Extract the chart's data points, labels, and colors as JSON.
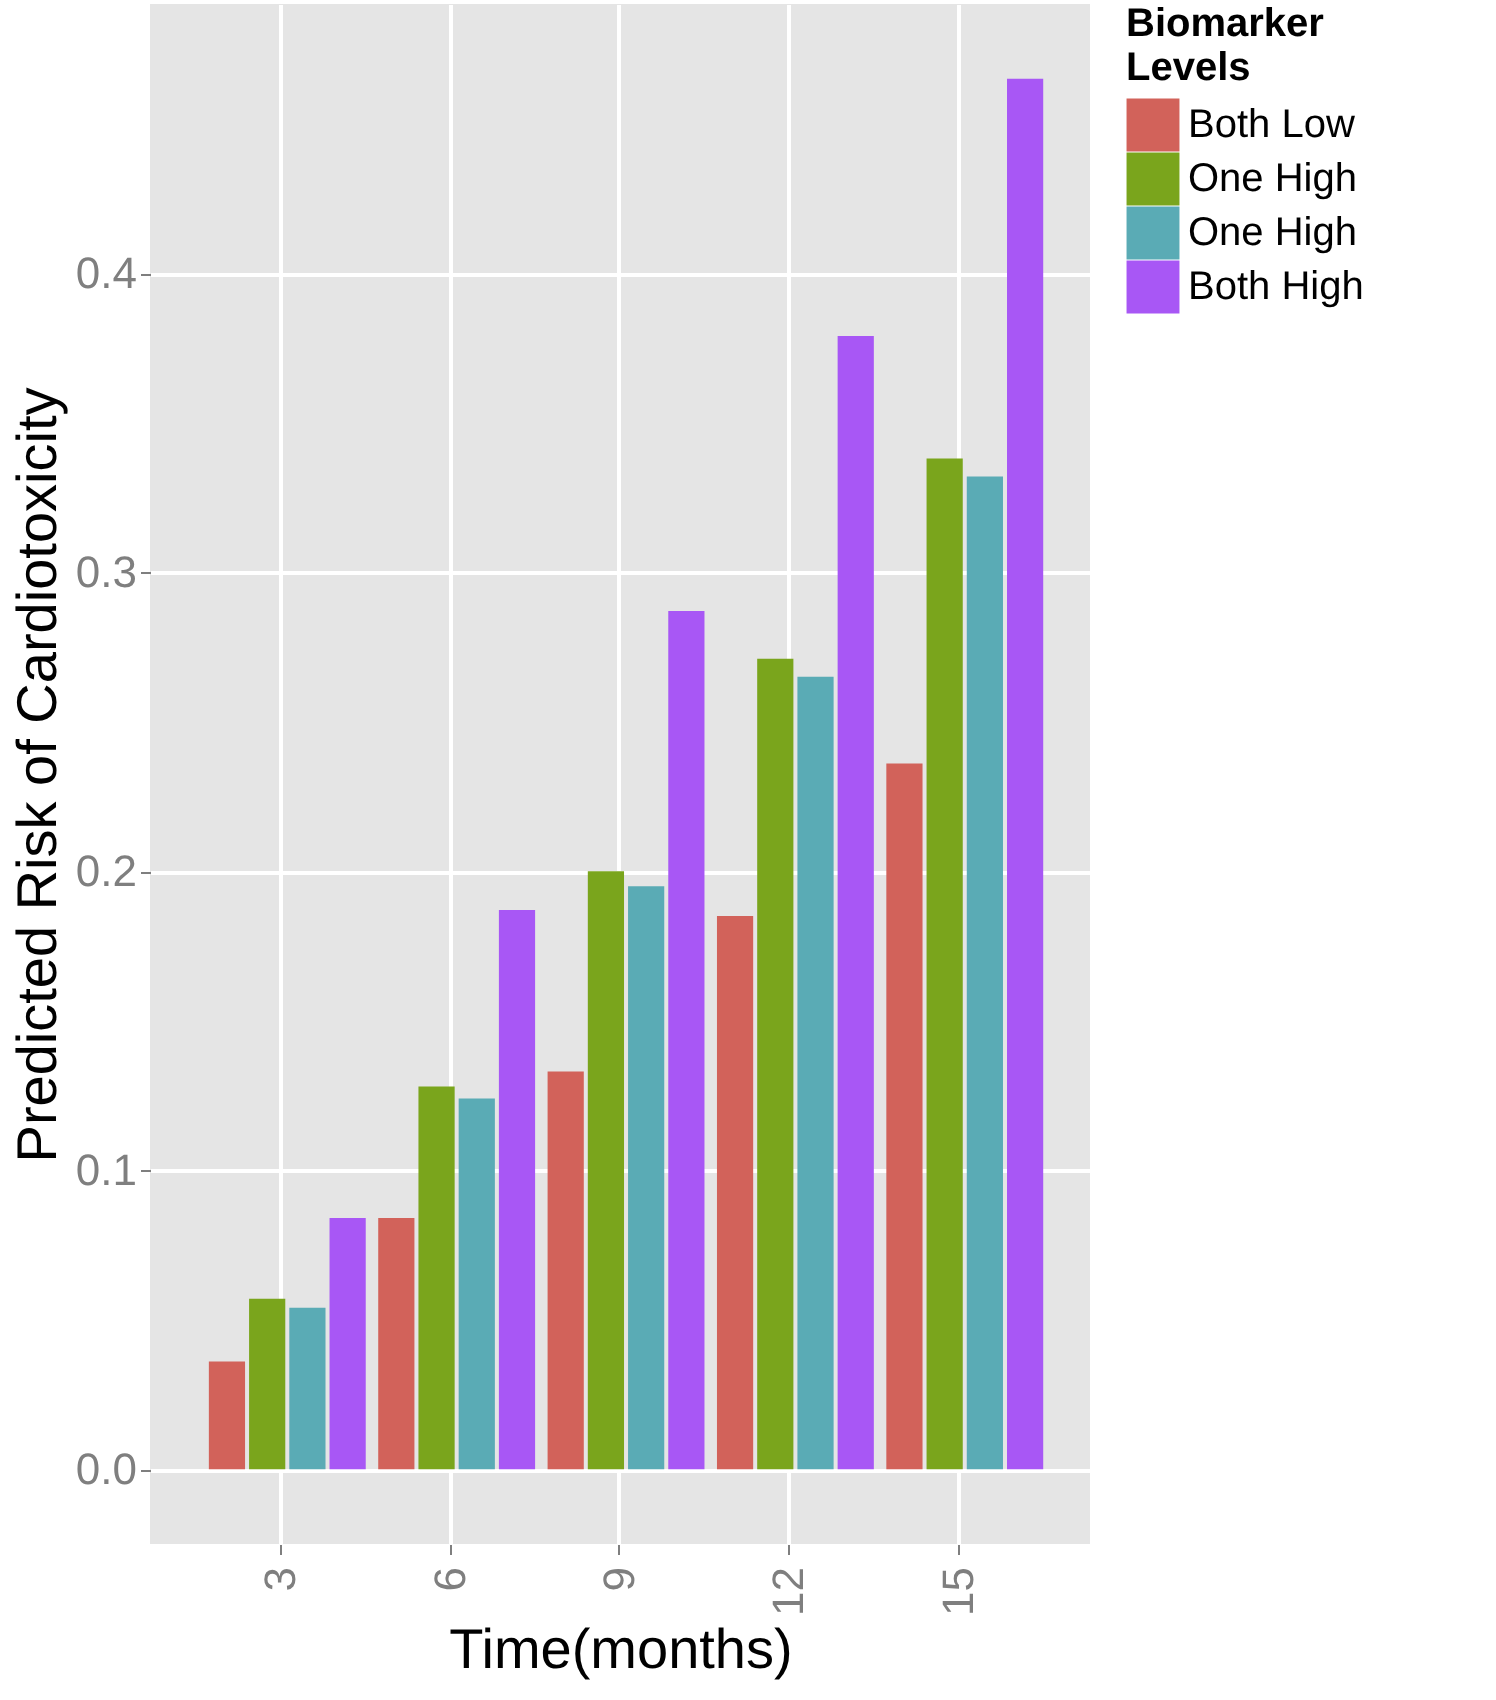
{
  "chart_data": {
    "type": "bar",
    "xlabel": "Time(months)",
    "ylabel": "Predicted Risk of Cardiotoxicity",
    "legend_title": "Biomarker Levels",
    "legend": "right",
    "grid": true,
    "categories": [
      "3",
      "6",
      "9",
      "12",
      "15"
    ],
    "ylim": [
      -0.025,
      0.49
    ],
    "yticks": [
      {
        "value": 0,
        "label": "0.0"
      },
      {
        "value": 0.1,
        "label": "0.1"
      },
      {
        "value": 0.2,
        "label": "0.2"
      },
      {
        "value": 0.3,
        "label": "0.3"
      },
      {
        "value": 0.4,
        "label": "0.4"
      }
    ],
    "series": [
      {
        "name": "Both Low",
        "color": "#d2625a",
        "values": [
          0.036,
          0.084,
          0.133,
          0.185,
          0.236
        ]
      },
      {
        "name": "One High",
        "color": "#7aa51c",
        "values": [
          0.057,
          0.128,
          0.2,
          0.271,
          0.338
        ]
      },
      {
        "name": "One High",
        "color": "#5aabb5",
        "values": [
          0.054,
          0.124,
          0.195,
          0.265,
          0.332
        ]
      },
      {
        "name": "Both High",
        "color": "#a857f5",
        "values": [
          0.084,
          0.187,
          0.287,
          0.379,
          0.465
        ]
      }
    ]
  }
}
